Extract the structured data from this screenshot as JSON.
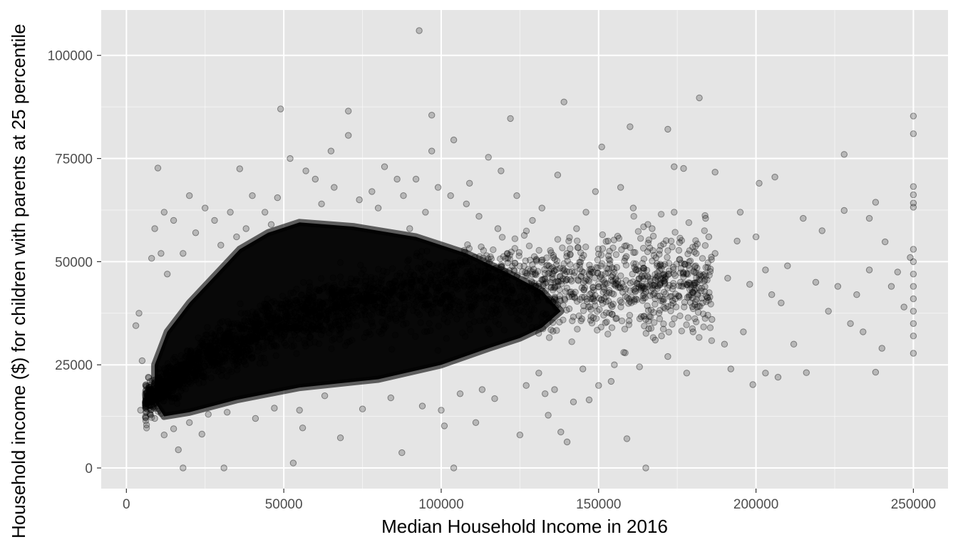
{
  "chart_data": {
    "type": "scatter",
    "title": "",
    "xlabel": "Median Household Income in 2016",
    "ylabel": "Household income ($) for children with parents at 25 percentile",
    "xlim": [
      -8000,
      261000
    ],
    "ylim": [
      -5000,
      111000
    ],
    "x_ticks": [
      0,
      50000,
      100000,
      150000,
      200000,
      250000
    ],
    "x_tick_labels": [
      "0",
      "50000",
      "100000",
      "150000",
      "200000",
      "250000"
    ],
    "y_ticks": [
      0,
      25000,
      50000,
      75000,
      100000
    ],
    "y_tick_labels": [
      "0",
      "25000",
      "50000",
      "75000",
      "100000"
    ],
    "grid": true,
    "legend": "none",
    "point_alpha": 0.2,
    "colors": {
      "panel": "#e5e5e5",
      "grid": "#ffffff",
      "point_fill": "#000000",
      "point_stroke": "#000000"
    },
    "series": [
      {
        "name": "",
        "points": [
          [
            93000,
            106000
          ],
          [
            49000,
            87000
          ],
          [
            70500,
            86500
          ],
          [
            97000,
            85500
          ],
          [
            122000,
            84700
          ],
          [
            250000,
            85300
          ],
          [
            182000,
            89700
          ],
          [
            139000,
            88700
          ],
          [
            160000,
            82700
          ],
          [
            172000,
            82100
          ],
          [
            250000,
            81000
          ],
          [
            70500,
            80600
          ],
          [
            104000,
            79500
          ],
          [
            151000,
            77800
          ],
          [
            65000,
            76800
          ],
          [
            97000,
            76800
          ],
          [
            228000,
            76000
          ],
          [
            10000,
            72700
          ],
          [
            36000,
            72500
          ],
          [
            52000,
            75000
          ],
          [
            115000,
            75300
          ],
          [
            174000,
            73000
          ],
          [
            177000,
            72600
          ],
          [
            187000,
            71700
          ],
          [
            201000,
            69000
          ],
          [
            206000,
            70500
          ],
          [
            250000,
            68200
          ],
          [
            250000,
            66200
          ],
          [
            250000,
            64200
          ],
          [
            250000,
            63200
          ],
          [
            3000,
            34500
          ],
          [
            4000,
            37500
          ],
          [
            5000,
            26000
          ],
          [
            4500,
            14000
          ],
          [
            8000,
            50800
          ],
          [
            18000,
            0
          ],
          [
            31000,
            0
          ],
          [
            53000,
            1200
          ],
          [
            104000,
            0
          ],
          [
            165000,
            0
          ],
          [
            87500,
            3700
          ],
          [
            16500,
            4400
          ],
          [
            56000,
            9700
          ],
          [
            68000,
            7300
          ],
          [
            125000,
            8000
          ],
          [
            159000,
            7100
          ],
          [
            101000,
            10200
          ],
          [
            111000,
            11000
          ],
          [
            134000,
            12800
          ],
          [
            138000,
            8700
          ],
          [
            140000,
            6300
          ],
          [
            199000,
            20200
          ],
          [
            203000,
            23000
          ],
          [
            207000,
            22000
          ],
          [
            216000,
            23100
          ],
          [
            230000,
            35000
          ],
          [
            234000,
            33000
          ],
          [
            238000,
            23200
          ],
          [
            240000,
            29000
          ],
          [
            250000,
            27800
          ],
          [
            250000,
            32000
          ],
          [
            250000,
            35000
          ],
          [
            250000,
            38000
          ],
          [
            250000,
            41000
          ],
          [
            250000,
            44000
          ],
          [
            250000,
            47000
          ],
          [
            250000,
            50000
          ],
          [
            250000,
            53000
          ],
          [
            249000,
            51000
          ],
          [
            245000,
            47500
          ],
          [
            241000,
            54800
          ],
          [
            238000,
            64400
          ],
          [
            236000,
            60500
          ],
          [
            228000,
            62400
          ],
          [
            221000,
            57500
          ],
          [
            215000,
            60500
          ],
          [
            210000,
            49000
          ],
          [
            205000,
            42000
          ],
          [
            198000,
            44500
          ],
          [
            194000,
            55000
          ],
          [
            191000,
            46000
          ],
          [
            187000,
            52000
          ],
          [
            184000,
            60500
          ],
          [
            183000,
            40000
          ],
          [
            180000,
            33000
          ],
          [
            178000,
            23000
          ],
          [
            172000,
            27000
          ],
          [
            168000,
            31000
          ],
          [
            165000,
            36000
          ],
          [
            162000,
            48000
          ],
          [
            158000,
            28000
          ],
          [
            155000,
            25000
          ],
          [
            150000,
            20000
          ],
          [
            147000,
            16500
          ],
          [
            142000,
            16000
          ],
          [
            136000,
            19000
          ],
          [
            131000,
            23000
          ],
          [
            128000,
            36000
          ],
          [
            125000,
            44000
          ],
          [
            121000,
            52000
          ],
          [
            118000,
            58000
          ],
          [
            112000,
            61000
          ],
          [
            108000,
            64000
          ],
          [
            103000,
            66000
          ],
          [
            99000,
            68000
          ],
          [
            95000,
            62000
          ],
          [
            90000,
            58000
          ],
          [
            86000,
            70000
          ],
          [
            82000,
            73000
          ],
          [
            78000,
            67000
          ],
          [
            74000,
            65000
          ],
          [
            60000,
            70000
          ],
          [
            57000,
            72000
          ],
          [
            44000,
            62000
          ],
          [
            40000,
            66000
          ],
          [
            38000,
            58000
          ],
          [
            33000,
            62000
          ],
          [
            28000,
            60000
          ],
          [
            25000,
            63000
          ],
          [
            22000,
            57000
          ],
          [
            20000,
            66000
          ],
          [
            15000,
            60000
          ],
          [
            12000,
            62000
          ],
          [
            9000,
            58000
          ],
          [
            11000,
            52000
          ],
          [
            13000,
            47000
          ],
          [
            6000,
            18000
          ],
          [
            7000,
            22000
          ],
          [
            9000,
            12000
          ],
          [
            12000,
            8000
          ],
          [
            15000,
            9500
          ],
          [
            20000,
            11000
          ],
          [
            24000,
            8200
          ],
          [
            26000,
            13000
          ],
          [
            32000,
            13500
          ],
          [
            41000,
            12000
          ],
          [
            47000,
            14500
          ],
          [
            55000,
            14000
          ],
          [
            63000,
            17500
          ],
          [
            75000,
            14300
          ],
          [
            84000,
            17000
          ],
          [
            94000,
            15000
          ],
          [
            100000,
            14000
          ],
          [
            106000,
            18000
          ],
          [
            113000,
            19000
          ],
          [
            117000,
            16800
          ],
          [
            127000,
            20000
          ],
          [
            133000,
            18000
          ],
          [
            145000,
            24000
          ],
          [
            154000,
            21000
          ],
          [
            163000,
            24500
          ],
          [
            170000,
            32000
          ],
          [
            176000,
            45000
          ],
          [
            181000,
            52000
          ],
          [
            186000,
            36000
          ],
          [
            190000,
            30000
          ],
          [
            195000,
            62000
          ],
          [
            200000,
            56000
          ],
          [
            203000,
            48000
          ],
          [
            208000,
            40000
          ],
          [
            212000,
            30000
          ],
          [
            219000,
            45000
          ],
          [
            223000,
            38000
          ],
          [
            226000,
            44000
          ],
          [
            232000,
            42000
          ],
          [
            236000,
            48000
          ],
          [
            243000,
            44000
          ],
          [
            247000,
            39000
          ],
          [
            192000,
            24000
          ],
          [
            196000,
            33000
          ],
          [
            185000,
            56000
          ],
          [
            174000,
            62000
          ],
          [
            167000,
            58000
          ],
          [
            161000,
            63000
          ],
          [
            157000,
            68000
          ],
          [
            153000,
            55000
          ],
          [
            149000,
            67000
          ],
          [
            146000,
            62000
          ],
          [
            143000,
            58000
          ],
          [
            137000,
            71000
          ],
          [
            132000,
            63000
          ],
          [
            129000,
            60000
          ],
          [
            124000,
            66000
          ],
          [
            119000,
            72000
          ],
          [
            109000,
            69000
          ],
          [
            92000,
            70000
          ],
          [
            88000,
            66000
          ],
          [
            80000,
            63000
          ],
          [
            66000,
            68000
          ],
          [
            62000,
            64000
          ],
          [
            48000,
            65500
          ],
          [
            46000,
            59000
          ],
          [
            35000,
            56000
          ],
          [
            30000,
            54000
          ],
          [
            18000,
            52000
          ]
        ]
      }
    ]
  }
}
